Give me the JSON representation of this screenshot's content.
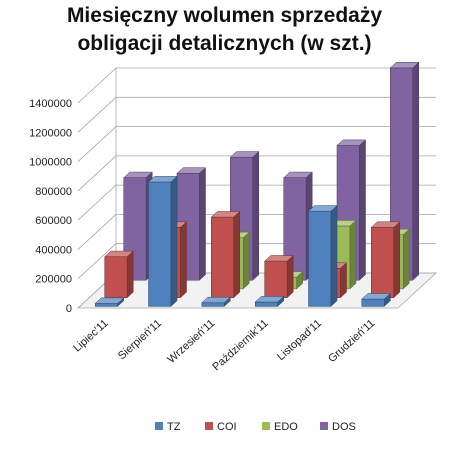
{
  "chart_data": {
    "type": "bar",
    "title_line1": "Miesięczny wolumen sprzedaży",
    "title_line2": "obligacji detalicznych (w szt.)",
    "categories": [
      "Lipiec'11",
      "Sierpień'11",
      "Wrzesień'11",
      "Październik'11",
      "Listopad'11",
      "Grudzień'11"
    ],
    "ylim": [
      0,
      1400000
    ],
    "yticks": [
      0,
      200000,
      400000,
      600000,
      800000,
      1000000,
      1200000,
      1400000
    ],
    "ytick_labels": [
      "0",
      "200000",
      "400000",
      "600000",
      "800000",
      "1000000",
      "1200000",
      "1400000"
    ],
    "legend_position": "bottom",
    "grid": true,
    "series": [
      {
        "name": "TZ",
        "color": "#4f81bd",
        "values": [
          20000,
          850000,
          25000,
          30000,
          650000,
          50000
        ]
      },
      {
        "name": "COI",
        "color": "#c0504d",
        "values": [
          280000,
          480000,
          550000,
          250000,
          200000,
          480000
        ]
      },
      {
        "name": "EDO",
        "color": "#9bbb59",
        "values": [
          0,
          0,
          350000,
          80000,
          430000,
          370000
        ]
      },
      {
        "name": "DOS",
        "color": "#8064a2",
        "values": [
          700000,
          730000,
          840000,
          700000,
          920000,
          1450000
        ]
      }
    ]
  }
}
